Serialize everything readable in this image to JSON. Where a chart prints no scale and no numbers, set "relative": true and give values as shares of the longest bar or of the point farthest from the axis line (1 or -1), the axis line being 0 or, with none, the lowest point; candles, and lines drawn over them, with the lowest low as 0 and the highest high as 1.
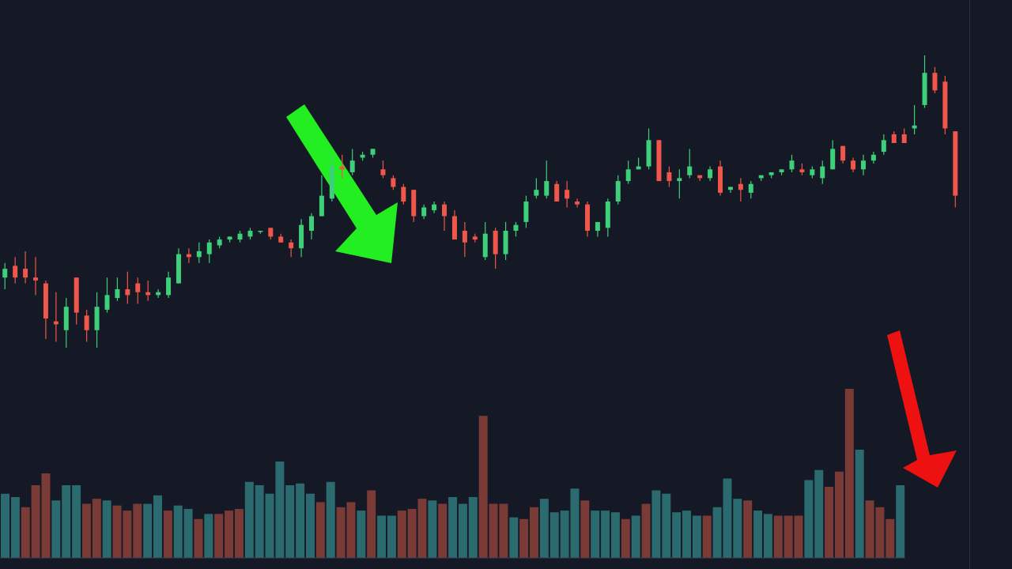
{
  "chart_data": [
    {
      "type": "candlestick",
      "relative": true,
      "categories": [
        null,
        null,
        null,
        null,
        null,
        null,
        null,
        null,
        null,
        null,
        null,
        null,
        null,
        null,
        null,
        null,
        null,
        null,
        null,
        null,
        null,
        null,
        null,
        null,
        null,
        null,
        null,
        null,
        null,
        null,
        null,
        null,
        null,
        null,
        null,
        null,
        null,
        null,
        null,
        null,
        null,
        null,
        null,
        null,
        null,
        null,
        null,
        null,
        null,
        null,
        null,
        null,
        null,
        null,
        null,
        null,
        null,
        null,
        null,
        null,
        null,
        null,
        null,
        null,
        null,
        null,
        null,
        null,
        null,
        null,
        null,
        null,
        null,
        null,
        null,
        null,
        null,
        null,
        null,
        null,
        null,
        null,
        null,
        null,
        null,
        null,
        null,
        null,
        null,
        null,
        null,
        null,
        null,
        null
      ],
      "ohlc": [
        [
          0.24,
          0.29,
          0.2,
          0.27
        ],
        [
          0.28,
          0.31,
          0.22,
          0.24
        ],
        [
          0.27,
          0.33,
          0.22,
          0.24
        ],
        [
          0.24,
          0.31,
          0.18,
          0.23
        ],
        [
          0.22,
          0.23,
          0.03,
          0.1
        ],
        [
          0.09,
          0.19,
          0.02,
          0.08
        ],
        [
          0.06,
          0.17,
          0,
          0.14
        ],
        [
          0.24,
          0.24,
          0.08,
          0.12
        ],
        [
          0.11,
          0.13,
          0.02,
          0.06
        ],
        [
          0.06,
          0.19,
          0,
          0.14
        ],
        [
          0.13,
          0.24,
          0.12,
          0.18
        ],
        [
          0.17,
          0.24,
          0.16,
          0.2
        ],
        [
          0.2,
          0.26,
          0.15,
          0.18
        ],
        [
          0.22,
          0.24,
          0.15,
          0.19
        ],
        [
          0.19,
          0.23,
          0.16,
          0.18
        ],
        [
          0.18,
          0.2,
          0.17,
          0.19
        ],
        [
          0.18,
          0.26,
          0.17,
          0.24
        ],
        [
          0.22,
          0.34,
          0.22,
          0.32
        ],
        [
          0.32,
          0.34,
          0.29,
          0.31
        ],
        [
          0.31,
          0.36,
          0.29,
          0.33
        ],
        [
          0.32,
          0.37,
          0.29,
          0.36
        ],
        [
          0.35,
          0.38,
          0.34,
          0.37
        ],
        [
          0.37,
          0.38,
          0.36,
          0.38
        ],
        [
          0.37,
          0.4,
          0.36,
          0.39
        ],
        [
          0.38,
          0.41,
          0.37,
          0.4
        ],
        [
          0.4,
          0.4,
          0.39,
          0.4
        ],
        [
          0.41,
          0.41,
          0.37,
          0.38
        ],
        [
          0.38,
          0.39,
          0.36,
          0.36
        ],
        [
          0.36,
          0.37,
          0.31,
          0.34
        ],
        [
          0.34,
          0.44,
          0.31,
          0.42
        ],
        [
          0.4,
          0.46,
          0.37,
          0.45
        ],
        [
          0.45,
          0.59,
          0.45,
          0.52
        ],
        [
          0.51,
          0.66,
          0.5,
          0.62
        ],
        [
          0.62,
          0.66,
          0.58,
          0.61
        ],
        [
          0.6,
          0.68,
          0.59,
          0.64
        ],
        [
          0.65,
          0.67,
          0.64,
          0.66
        ],
        [
          0.66,
          0.68,
          0.65,
          0.68
        ],
        [
          0.61,
          0.64,
          0.58,
          0.59
        ],
        [
          0.58,
          0.59,
          0.54,
          0.55
        ],
        [
          0.55,
          0.56,
          0.49,
          0.5
        ],
        [
          0.54,
          0.54,
          0.43,
          0.45
        ],
        [
          0.45,
          0.49,
          0.44,
          0.48
        ],
        [
          0.47,
          0.5,
          0.46,
          0.49
        ],
        [
          0.49,
          0.5,
          0.4,
          0.45
        ],
        [
          0.45,
          0.47,
          0.37,
          0.37
        ],
        [
          0.4,
          0.43,
          0.31,
          0.36
        ],
        [
          0.38,
          0.39,
          0.36,
          0.37
        ],
        [
          0.31,
          0.43,
          0.3,
          0.39
        ],
        [
          0.4,
          0.41,
          0.27,
          0.32
        ],
        [
          0.32,
          0.43,
          0.3,
          0.4
        ],
        [
          0.4,
          0.43,
          0.38,
          0.42
        ],
        [
          0.43,
          0.52,
          0.41,
          0.5
        ],
        [
          0.52,
          0.58,
          0.51,
          0.54
        ],
        [
          0.52,
          0.64,
          0.51,
          0.57
        ],
        [
          0.56,
          0.57,
          0.5,
          0.5
        ],
        [
          0.54,
          0.57,
          0.48,
          0.51
        ],
        [
          0.5,
          0.51,
          0.48,
          0.49
        ],
        [
          0.49,
          0.5,
          0.38,
          0.4
        ],
        [
          0.4,
          0.43,
          0.38,
          0.43
        ],
        [
          0.41,
          0.51,
          0.38,
          0.5
        ],
        [
          0.5,
          0.59,
          0.49,
          0.57
        ],
        [
          0.57,
          0.64,
          0.56,
          0.61
        ],
        [
          0.61,
          0.65,
          0.61,
          0.62
        ],
        [
          0.62,
          0.75,
          0.61,
          0.71
        ],
        [
          0.71,
          0.71,
          0.57,
          0.57
        ],
        [
          0.6,
          0.62,
          0.55,
          0.57
        ],
        [
          0.57,
          0.61,
          0.51,
          0.58
        ],
        [
          0.59,
          0.68,
          0.58,
          0.62
        ],
        [
          0.59,
          0.59,
          0.57,
          0.58
        ],
        [
          0.58,
          0.62,
          0.57,
          0.61
        ],
        [
          0.62,
          0.64,
          0.52,
          0.53
        ],
        [
          0.54,
          0.55,
          0.53,
          0.55
        ],
        [
          0.56,
          0.58,
          0.5,
          0.54
        ],
        [
          0.53,
          0.57,
          0.51,
          0.56
        ],
        [
          0.58,
          0.59,
          0.57,
          0.59
        ],
        [
          0.59,
          0.6,
          0.58,
          0.6
        ],
        [
          0.6,
          0.61,
          0.59,
          0.61
        ],
        [
          0.61,
          0.66,
          0.6,
          0.64
        ],
        [
          0.61,
          0.63,
          0.59,
          0.6
        ],
        [
          0.59,
          0.62,
          0.58,
          0.61
        ],
        [
          0.58,
          0.64,
          0.56,
          0.62
        ],
        [
          0.61,
          0.71,
          0.61,
          0.68
        ],
        [
          0.69,
          0.69,
          0.63,
          0.64
        ],
        [
          0.64,
          0.65,
          0.6,
          0.61
        ],
        [
          0.61,
          0.66,
          0.59,
          0.64
        ],
        [
          0.64,
          0.67,
          0.63,
          0.66
        ],
        [
          0.67,
          0.73,
          0.66,
          0.71
        ],
        [
          0.73,
          0.74,
          0.7,
          0.7
        ],
        [
          0.73,
          0.75,
          0.7,
          0.7
        ],
        [
          0.75,
          0.83,
          0.73,
          0.76
        ],
        [
          0.83,
          1,
          0.82,
          0.94
        ],
        [
          0.94,
          0.96,
          0.87,
          0.88
        ],
        [
          0.91,
          0.93,
          0.73,
          0.75
        ],
        [
          0.74,
          0.74,
          0.48,
          0.52
        ]
      ],
      "colors": [
        "#3dcf7a",
        "#f0564a",
        "#f0564a",
        "#f0564a",
        "#f0564a",
        "#f0564a",
        "#3dcf7a",
        "#f0564a",
        "#f0564a",
        "#3dcf7a",
        "#3dcf7a",
        "#3dcf7a",
        "#f0564a",
        "#f0564a",
        "#f0564a",
        "#3dcf7a",
        "#3dcf7a",
        "#3dcf7a",
        "#f0564a",
        "#3dcf7a",
        "#3dcf7a",
        "#3dcf7a",
        "#3dcf7a",
        "#3dcf7a",
        "#3dcf7a",
        "#3dcf7a",
        "#f0564a",
        "#f0564a",
        "#f0564a",
        "#3dcf7a",
        "#3dcf7a",
        "#3dcf7a",
        "#3dcf7a",
        "#f0564a",
        "#3dcf7a",
        "#3dcf7a",
        "#3dcf7a",
        "#f0564a",
        "#f0564a",
        "#f0564a",
        "#f0564a",
        "#3dcf7a",
        "#3dcf7a",
        "#f0564a",
        "#f0564a",
        "#f0564a",
        "#f0564a",
        "#3dcf7a",
        "#f0564a",
        "#3dcf7a",
        "#3dcf7a",
        "#3dcf7a",
        "#3dcf7a",
        "#3dcf7a",
        "#f0564a",
        "#f0564a",
        "#f0564a",
        "#f0564a",
        "#3dcf7a",
        "#3dcf7a",
        "#3dcf7a",
        "#3dcf7a",
        "#3dcf7a",
        "#3dcf7a",
        "#f0564a",
        "#f0564a",
        "#3dcf7a",
        "#3dcf7a",
        "#f0564a",
        "#3dcf7a",
        "#f0564a",
        "#3dcf7a",
        "#f0564a",
        "#3dcf7a",
        "#3dcf7a",
        "#3dcf7a",
        "#3dcf7a",
        "#3dcf7a",
        "#f0564a",
        "#3dcf7a",
        "#3dcf7a",
        "#3dcf7a",
        "#f0564a",
        "#f0564a",
        "#3dcf7a",
        "#3dcf7a",
        "#3dcf7a",
        "#f0564a",
        "#f0564a",
        "#3dcf7a",
        "#3dcf7a",
        "#f0564a",
        "#f0564a",
        "#f0564a"
      ]
    },
    {
      "type": "bar",
      "relative": true,
      "categories": [
        null,
        null,
        null,
        null,
        null,
        null,
        null,
        null,
        null,
        null,
        null,
        null,
        null,
        null,
        null,
        null,
        null,
        null,
        null,
        null,
        null,
        null,
        null,
        null,
        null,
        null,
        null,
        null,
        null,
        null,
        null,
        null,
        null,
        null,
        null,
        null,
        null,
        null,
        null,
        null,
        null,
        null,
        null,
        null,
        null,
        null,
        null,
        null,
        null,
        null,
        null,
        null,
        null,
        null,
        null,
        null,
        null,
        null,
        null,
        null,
        null,
        null,
        null,
        null,
        null,
        null,
        null,
        null,
        null,
        null,
        null,
        null,
        null,
        null,
        null,
        null,
        null,
        null,
        null,
        null,
        null,
        null,
        null,
        null,
        null,
        null,
        null,
        null,
        null
      ],
      "values": [
        0.38,
        0.36,
        0.3,
        0.43,
        0.5,
        0.34,
        0.43,
        0.43,
        0.32,
        0.35,
        0.34,
        0.31,
        0.28,
        0.32,
        0.32,
        0.37,
        0.28,
        0.31,
        0.29,
        0.23,
        0.26,
        0.26,
        0.28,
        0.29,
        0.45,
        0.43,
        0.38,
        0.57,
        0.43,
        0.44,
        0.38,
        0.33,
        0.45,
        0.3,
        0.33,
        0.28,
        0.4,
        0.25,
        0.25,
        0.28,
        0.29,
        0.35,
        0.34,
        0.32,
        0.36,
        0.32,
        0.36,
        0.84,
        0.32,
        0.32,
        0.24,
        0.23,
        0.3,
        0.35,
        0.27,
        0.28,
        0.41,
        0.34,
        0.28,
        0.28,
        0.27,
        0.23,
        0.25,
        0.32,
        0.4,
        0.38,
        0.27,
        0.28,
        0.25,
        0.25,
        0.3,
        0.47,
        0.35,
        0.34,
        0.28,
        0.26,
        0.25,
        0.25,
        0.25,
        0.46,
        0.52,
        0.42,
        0.51,
        1,
        0.64,
        0.34,
        0.3,
        0.23,
        0.43
      ],
      "colors": [
        "#2b6a6e",
        "#2b6a6e",
        "#7a3b37",
        "#7a3b37",
        "#7a3b37",
        "#2b6a6e",
        "#2b6a6e",
        "#2b6a6e",
        "#7a3b37",
        "#7a3b37",
        "#2b6a6e",
        "#7a3b37",
        "#7a3b37",
        "#7a3b37",
        "#2b6a6e",
        "#2b6a6e",
        "#7a3b37",
        "#2b6a6e",
        "#2b6a6e",
        "#7a3b37",
        "#2b6a6e",
        "#7a3b37",
        "#7a3b37",
        "#7a3b37",
        "#2b6a6e",
        "#2b6a6e",
        "#2b6a6e",
        "#2b6a6e",
        "#2b6a6e",
        "#2b6a6e",
        "#2b6a6e",
        "#7a3b37",
        "#2b6a6e",
        "#7a3b37",
        "#7a3b37",
        "#2b6a6e",
        "#7a3b37",
        "#2b6a6e",
        "#2b6a6e",
        "#7a3b37",
        "#7a3b37",
        "#7a3b37",
        "#2b6a6e",
        "#7a3b37",
        "#2b6a6e",
        "#2b6a6e",
        "#2b6a6e",
        "#7a3b37",
        "#7a3b37",
        "#7a3b37",
        "#2b6a6e",
        "#7a3b37",
        "#7a3b37",
        "#2b6a6e",
        "#2b6a6e",
        "#2b6a6e",
        "#2b6a6e",
        "#7a3b37",
        "#2b6a6e",
        "#2b6a6e",
        "#2b6a6e",
        "#7a3b37",
        "#2b6a6e",
        "#7a3b37",
        "#2b6a6e",
        "#2b6a6e",
        "#2b6a6e",
        "#2b6a6e",
        "#2b6a6e",
        "#7a3b37",
        "#2b6a6e",
        "#2b6a6e",
        "#2b6a6e",
        "#7a3b37",
        "#2b6a6e",
        "#2b6a6e",
        "#7a3b37",
        "#7a3b37",
        "#7a3b37",
        "#2b6a6e",
        "#2b6a6e",
        "#7a3b37",
        "#7a3b37",
        "#7a3b37",
        "#2b6a6e",
        "#7a3b37",
        "#7a3b37",
        "#7a3b37",
        "#2b6a6e"
      ]
    }
  ]
}
